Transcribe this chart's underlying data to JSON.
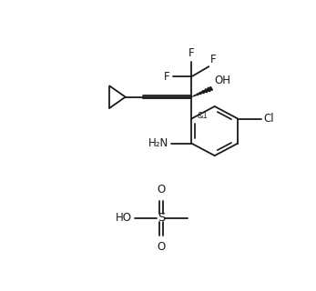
{
  "bg_color": "#ffffff",
  "line_color": "#1a1a1a",
  "line_width": 1.3,
  "font_size": 8.5,
  "figsize": [
    3.47,
    3.2
  ],
  "dpi": 100,
  "xlim": [
    0,
    10
  ],
  "ylim": [
    0,
    10
  ]
}
